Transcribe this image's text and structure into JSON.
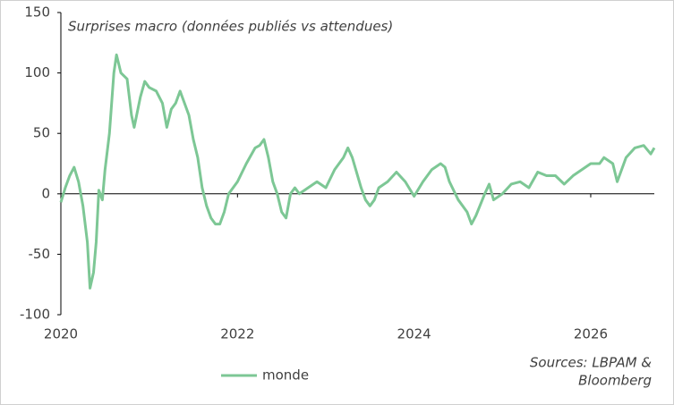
{
  "chart_data": {
    "type": "line",
    "title": "Surprises macro (données publiés vs attendues)",
    "annotations": [
      "Sources: LBPAM &",
      "Bloomberg"
    ],
    "x": [
      2020.0,
      2020.05,
      2020.1,
      2020.15,
      2020.2,
      2020.25,
      2020.3,
      2020.33,
      2020.37,
      2020.4,
      2020.43,
      2020.47,
      2020.5,
      2020.55,
      2020.6,
      2020.63,
      2020.68,
      2020.75,
      2020.8,
      2020.83,
      2020.9,
      2020.95,
      2021.0,
      2021.08,
      2021.15,
      2021.2,
      2021.25,
      2021.3,
      2021.35,
      2021.4,
      2021.45,
      2021.5,
      2021.55,
      2021.6,
      2021.65,
      2021.7,
      2021.75,
      2021.8,
      2021.85,
      2021.9,
      2022.0,
      2022.1,
      2022.2,
      2022.25,
      2022.3,
      2022.35,
      2022.4,
      2022.45,
      2022.5,
      2022.55,
      2022.6,
      2022.65,
      2022.7,
      2022.8,
      2022.9,
      2023.0,
      2023.1,
      2023.2,
      2023.25,
      2023.3,
      2023.4,
      2023.45,
      2023.5,
      2023.55,
      2023.6,
      2023.7,
      2023.8,
      2023.9,
      2024.0,
      2024.1,
      2024.2,
      2024.3,
      2024.35,
      2024.4,
      2024.5,
      2024.6,
      2024.65,
      2024.7,
      2024.8,
      2024.85,
      2024.9,
      2025.0,
      2025.1,
      2025.2,
      2025.3,
      2025.4,
      2025.5,
      2025.6,
      2025.7,
      2025.8,
      2025.9,
      2026.0,
      2026.1,
      2026.15,
      2026.25,
      2026.3,
      2026.35,
      2026.4,
      2026.5,
      2026.6,
      2026.68,
      2026.72
    ],
    "series": [
      {
        "name": "monde",
        "color": "#7dc795",
        "values": [
          -7,
          5,
          15,
          22,
          10,
          -10,
          -40,
          -78,
          -65,
          -40,
          3,
          -5,
          20,
          50,
          100,
          115,
          100,
          95,
          65,
          55,
          80,
          93,
          88,
          85,
          75,
          55,
          70,
          75,
          85,
          75,
          65,
          45,
          30,
          5,
          -10,
          -20,
          -25,
          -25,
          -15,
          0,
          10,
          25,
          38,
          40,
          45,
          30,
          10,
          0,
          -15,
          -20,
          0,
          5,
          0,
          5,
          10,
          5,
          20,
          30,
          38,
          30,
          5,
          -5,
          -10,
          -5,
          5,
          10,
          18,
          10,
          -2,
          10,
          20,
          25,
          22,
          10,
          -5,
          -15,
          -25,
          -18,
          0,
          8,
          -5,
          0,
          8,
          10,
          5,
          18,
          15,
          15,
          8,
          15,
          20,
          25,
          25,
          30,
          25,
          10,
          20,
          30,
          38,
          40,
          33,
          38
        ]
      }
    ],
    "xlim": [
      2020,
      2026.72
    ],
    "xticks": [
      2020,
      2022,
      2024,
      2026
    ],
    "ylim": [
      -100,
      150
    ],
    "yticks": [
      -100,
      -50,
      0,
      50,
      100,
      150
    ],
    "legend": "bottom"
  }
}
